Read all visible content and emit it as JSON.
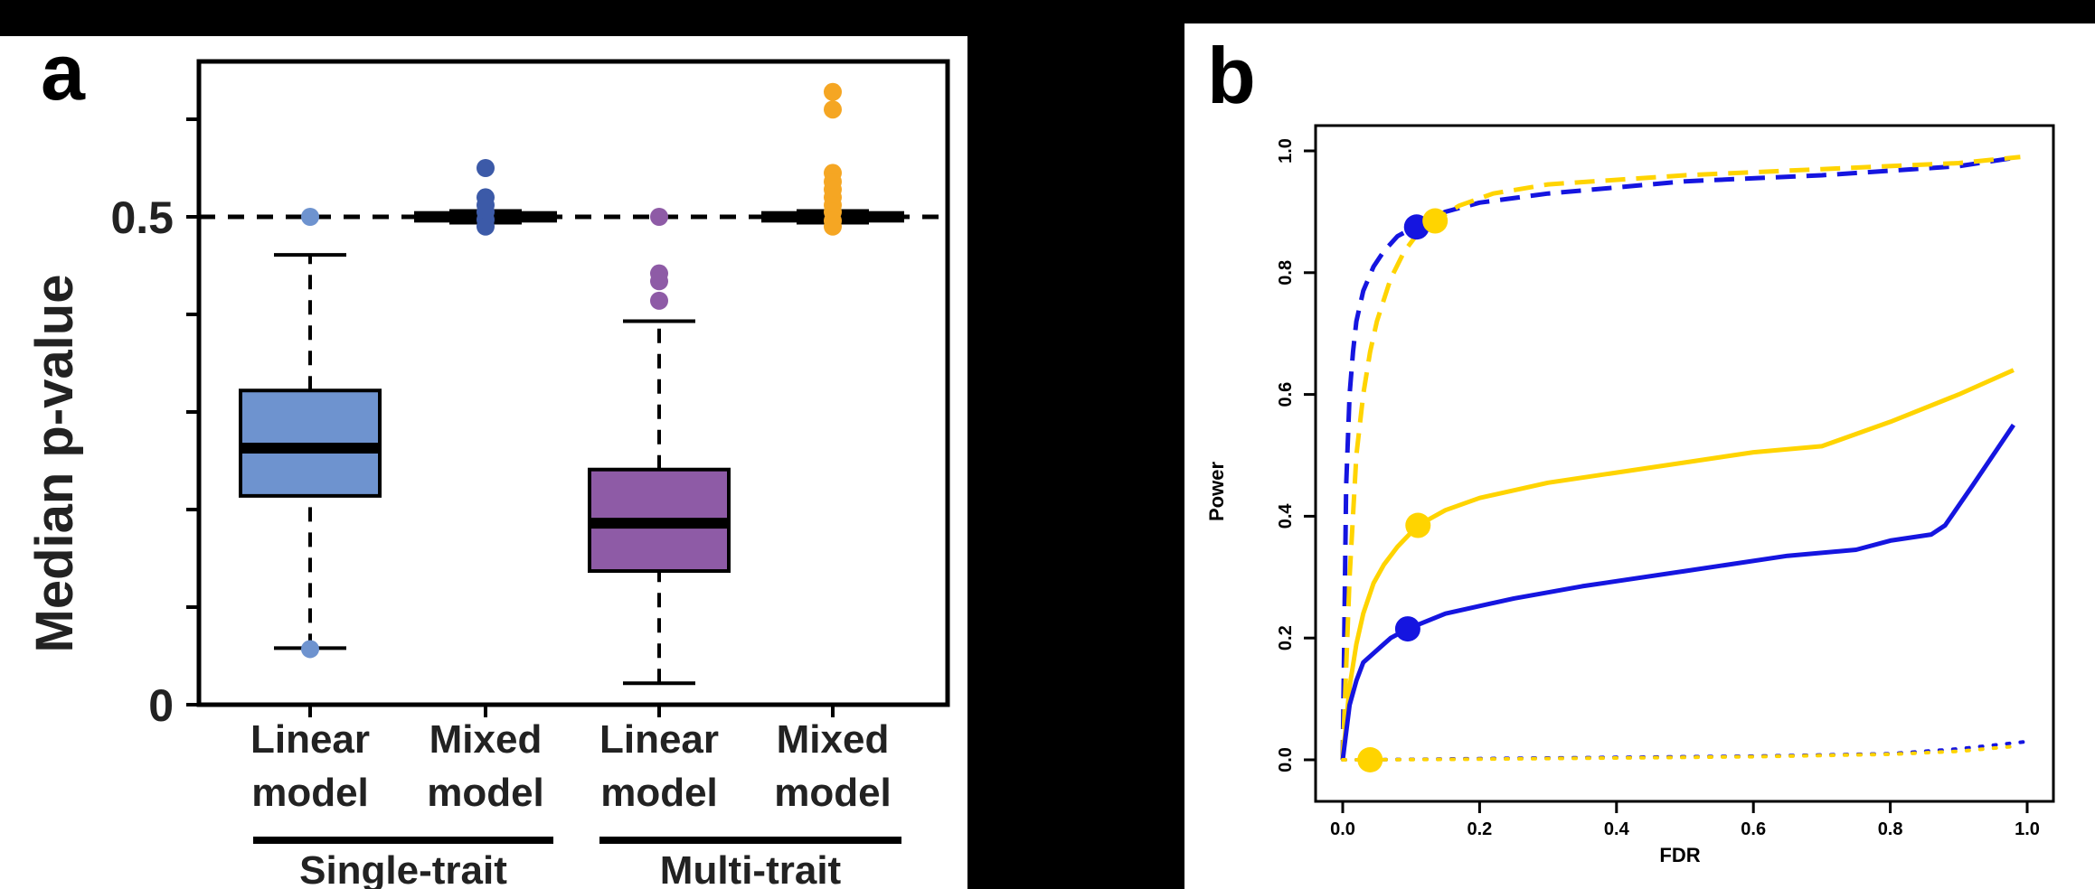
{
  "chart_data": [
    {
      "panel_label": "a",
      "type": "box",
      "ylabel": "Median p-value",
      "ytick_labels": [
        {
          "value": 0,
          "label": "0"
        },
        {
          "value": 0.5,
          "label": "0.5"
        }
      ],
      "ylim": [
        0,
        0.6
      ],
      "reference_line": 0.5,
      "categories": [
        {
          "label_line1": "Linear",
          "label_line2": "model",
          "group": "Single-trait",
          "color": "#6E93CF",
          "whisker_low": 0.058,
          "q1": 0.214,
          "median": 0.263,
          "q3": 0.322,
          "whisker_high": 0.461,
          "outliers": [
            0.5,
            0.057
          ]
        },
        {
          "label_line1": "Mixed",
          "label_line2": "model",
          "group": "Single-trait",
          "color": "#3C5AA8",
          "whisker_low": 0.494,
          "q1": 0.496,
          "median": 0.5,
          "q3": 0.504,
          "whisker_high": 0.506,
          "outliers": [
            0.55,
            0.52,
            0.512,
            0.505,
            0.497,
            0.49
          ]
        },
        {
          "label_line1": "Linear",
          "label_line2": "model",
          "group": "Multi-trait",
          "color": "#8E5BA6",
          "whisker_low": 0.022,
          "q1": 0.137,
          "median": 0.186,
          "q3": 0.241,
          "whisker_high": 0.393,
          "outliers": [
            0.5,
            0.442,
            0.434,
            0.414
          ]
        },
        {
          "label_line1": "Mixed",
          "label_line2": "model",
          "group": "Multi-trait",
          "color": "#F5A623",
          "whisker_low": 0.494,
          "q1": 0.496,
          "median": 0.5,
          "q3": 0.504,
          "whisker_high": 0.506,
          "outliers": [
            0.628,
            0.61,
            0.545,
            0.536,
            0.528,
            0.52,
            0.512,
            0.505,
            0.496,
            0.49
          ]
        }
      ],
      "groups": [
        "Single-trait",
        "Multi-trait"
      ]
    },
    {
      "panel_label": "b",
      "type": "line",
      "xlabel": "FDR",
      "ylabel": "Power",
      "xlim": [
        0,
        1
      ],
      "ylim": [
        0,
        1
      ],
      "xticks": [
        "0.0",
        "0.2",
        "0.4",
        "0.6",
        "0.8",
        "1.0"
      ],
      "yticks": [
        "0.0",
        "0.2",
        "0.4",
        "0.6",
        "0.8",
        "1.0"
      ],
      "grid": false,
      "series": [
        {
          "color": "#1515E0",
          "style": "dashed",
          "x": [
            0,
            0.005,
            0.01,
            0.015,
            0.02,
            0.03,
            0.045,
            0.06,
            0.08,
            0.105,
            0.15,
            0.2,
            0.3,
            0.5,
            0.7,
            0.9,
            0.99
          ],
          "y": [
            0,
            0.45,
            0.6,
            0.67,
            0.72,
            0.77,
            0.81,
            0.835,
            0.86,
            0.875,
            0.9,
            0.915,
            0.93,
            0.95,
            0.96,
            0.975,
            0.99
          ],
          "marker": {
            "x": 0.108,
            "y": 0.875
          }
        },
        {
          "color": "#FFD400",
          "style": "dashed",
          "x": [
            0,
            0.01,
            0.02,
            0.03,
            0.04,
            0.05,
            0.07,
            0.09,
            0.11,
            0.135,
            0.17,
            0.22,
            0.3,
            0.5,
            0.7,
            0.9,
            0.99
          ],
          "y": [
            0,
            0.3,
            0.5,
            0.6,
            0.67,
            0.72,
            0.79,
            0.835,
            0.865,
            0.885,
            0.91,
            0.93,
            0.945,
            0.96,
            0.97,
            0.98,
            0.99
          ],
          "marker": {
            "x": 0.135,
            "y": 0.885
          }
        },
        {
          "color": "#FFD400",
          "style": "solid",
          "x": [
            0,
            0.01,
            0.02,
            0.03,
            0.045,
            0.06,
            0.08,
            0.11,
            0.15,
            0.2,
            0.3,
            0.45,
            0.6,
            0.7,
            0.8,
            0.9,
            0.98
          ],
          "y": [
            0,
            0.12,
            0.19,
            0.24,
            0.29,
            0.32,
            0.35,
            0.385,
            0.41,
            0.43,
            0.455,
            0.48,
            0.505,
            0.515,
            0.555,
            0.6,
            0.64
          ],
          "marker": {
            "x": 0.11,
            "y": 0.385
          }
        },
        {
          "color": "#1515E0",
          "style": "solid",
          "x": [
            0,
            0.01,
            0.02,
            0.03,
            0.05,
            0.07,
            0.095,
            0.15,
            0.25,
            0.35,
            0.5,
            0.65,
            0.75,
            0.8,
            0.86,
            0.88,
            0.92,
            0.98
          ],
          "y": [
            0,
            0.09,
            0.13,
            0.16,
            0.18,
            0.2,
            0.215,
            0.24,
            0.265,
            0.285,
            0.31,
            0.335,
            0.345,
            0.36,
            0.37,
            0.385,
            0.45,
            0.55
          ],
          "marker": {
            "x": 0.095,
            "y": 0.215
          }
        },
        {
          "color": "#1515E0",
          "style": "dotted",
          "x": [
            0,
            0.04,
            0.2,
            0.4,
            0.6,
            0.8,
            0.9,
            1.0
          ],
          "y": [
            0,
            0.0,
            0.002,
            0.004,
            0.006,
            0.01,
            0.018,
            0.03
          ],
          "marker": null
        },
        {
          "color": "#FFD400",
          "style": "dotted",
          "x": [
            0,
            0.04,
            0.2,
            0.4,
            0.6,
            0.8,
            0.9,
            0.98
          ],
          "y": [
            0,
            0.0,
            0.001,
            0.003,
            0.005,
            0.009,
            0.014,
            0.022
          ],
          "marker": {
            "x": 0.04,
            "y": 0.0
          }
        }
      ]
    }
  ]
}
